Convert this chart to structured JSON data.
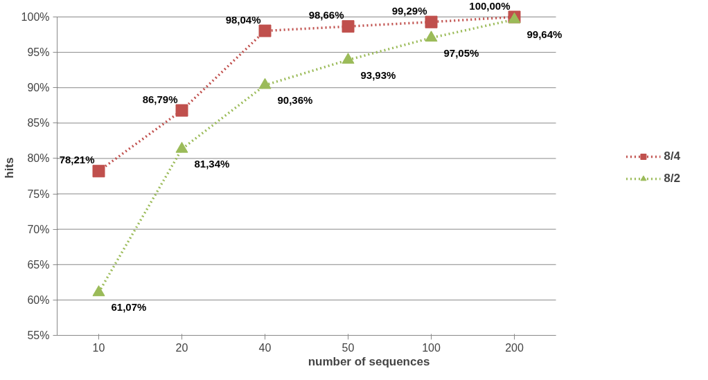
{
  "chart_data": {
    "type": "line",
    "xlabel": "number of sequences",
    "ylabel": "hits",
    "categories": [
      "10",
      "20",
      "40",
      "50",
      "100",
      "200"
    ],
    "series": [
      {
        "name": "8/4",
        "color": "#c0504d",
        "marker": "square",
        "values": [
          78.21,
          86.79,
          98.04,
          98.66,
          99.29,
          100.0
        ],
        "value_labels": [
          "78,21%",
          "86,79%",
          "98,04%",
          "98,66%",
          "99,29%",
          "100,00%"
        ]
      },
      {
        "name": "8/2",
        "color": "#9bbb59",
        "marker": "triangle",
        "values": [
          61.07,
          81.34,
          90.36,
          93.93,
          97.05,
          99.64
        ],
        "value_labels": [
          "61,07%",
          "81,34%",
          "90,36%",
          "93,93%",
          "97,05%",
          "99,64%"
        ]
      }
    ],
    "ylim": [
      55,
      100
    ],
    "yticks": [
      {
        "value": 55,
        "label": "55%"
      },
      {
        "value": 60,
        "label": "60%"
      },
      {
        "value": 65,
        "label": "65%"
      },
      {
        "value": 70,
        "label": "70%"
      },
      {
        "value": 75,
        "label": "75%"
      },
      {
        "value": 80,
        "label": "80%"
      },
      {
        "value": 85,
        "label": "85%"
      },
      {
        "value": 90,
        "label": "90%"
      },
      {
        "value": 95,
        "label": "95%"
      },
      {
        "value": 100,
        "label": "100%"
      }
    ],
    "grid": "y",
    "legend": "right",
    "line_style": "dotted"
  }
}
